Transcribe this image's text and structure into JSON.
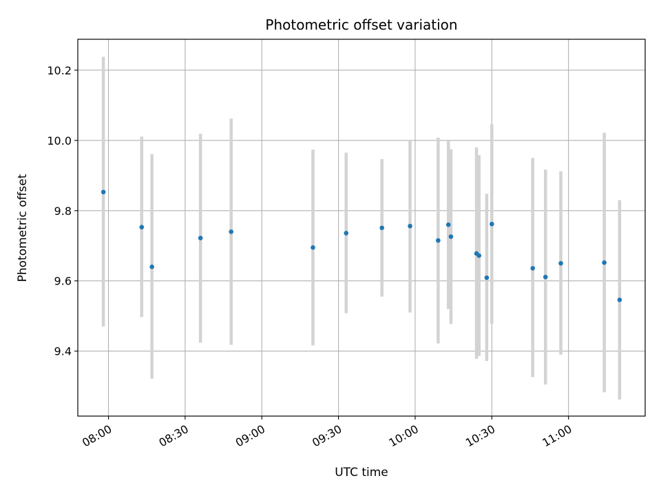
{
  "chart_data": {
    "type": "scatter",
    "title": "Photometric offset variation",
    "xlabel": "UTC time",
    "ylabel": "Photometric offset",
    "x_unit": "time of day (HH:MM, UTC)",
    "xlim": [
      "07:48",
      "11:30"
    ],
    "ylim": [
      9.215,
      10.288
    ],
    "xticks": [
      "08:00",
      "08:30",
      "09:00",
      "09:30",
      "10:00",
      "10:30",
      "11:00"
    ],
    "yticks": [
      9.4,
      9.6,
      9.8,
      10.0,
      10.2
    ],
    "grid": true,
    "error_bars": true,
    "colors": {
      "points": "#1f77b4",
      "error_bars": "#d3d3d3",
      "grid": "#b0b0b0"
    },
    "points": [
      {
        "x": "07:58",
        "y": 9.853,
        "lo": 9.47,
        "hi": 10.238
      },
      {
        "x": "08:13",
        "y": 9.753,
        "lo": 9.497,
        "hi": 10.011
      },
      {
        "x": "08:17",
        "y": 9.64,
        "lo": 9.322,
        "hi": 9.961
      },
      {
        "x": "08:36",
        "y": 9.722,
        "lo": 9.424,
        "hi": 10.019
      },
      {
        "x": "08:48",
        "y": 9.74,
        "lo": 9.418,
        "hi": 10.062
      },
      {
        "x": "09:20",
        "y": 9.695,
        "lo": 9.416,
        "hi": 9.974
      },
      {
        "x": "09:33",
        "y": 9.736,
        "lo": 9.508,
        "hi": 9.965
      },
      {
        "x": "09:47",
        "y": 9.751,
        "lo": 9.555,
        "hi": 9.947
      },
      {
        "x": "09:58",
        "y": 9.756,
        "lo": 9.51,
        "hi": 10.0
      },
      {
        "x": "10:09",
        "y": 9.715,
        "lo": 9.422,
        "hi": 10.008
      },
      {
        "x": "10:13",
        "y": 9.76,
        "lo": 9.52,
        "hi": 10.0
      },
      {
        "x": "10:14",
        "y": 9.726,
        "lo": 9.477,
        "hi": 9.975
      },
      {
        "x": "10:24",
        "y": 9.678,
        "lo": 9.378,
        "hi": 9.98
      },
      {
        "x": "10:25",
        "y": 9.672,
        "lo": 9.386,
        "hi": 9.958
      },
      {
        "x": "10:28",
        "y": 9.609,
        "lo": 9.372,
        "hi": 9.848
      },
      {
        "x": "10:30",
        "y": 9.762,
        "lo": 9.478,
        "hi": 10.046
      },
      {
        "x": "10:46",
        "y": 9.636,
        "lo": 9.326,
        "hi": 9.95
      },
      {
        "x": "10:51",
        "y": 9.611,
        "lo": 9.305,
        "hi": 9.917
      },
      {
        "x": "10:57",
        "y": 9.65,
        "lo": 9.39,
        "hi": 9.912
      },
      {
        "x": "11:14",
        "y": 9.652,
        "lo": 9.283,
        "hi": 10.022
      },
      {
        "x": "11:20",
        "y": 9.546,
        "lo": 9.262,
        "hi": 9.83
      }
    ]
  }
}
